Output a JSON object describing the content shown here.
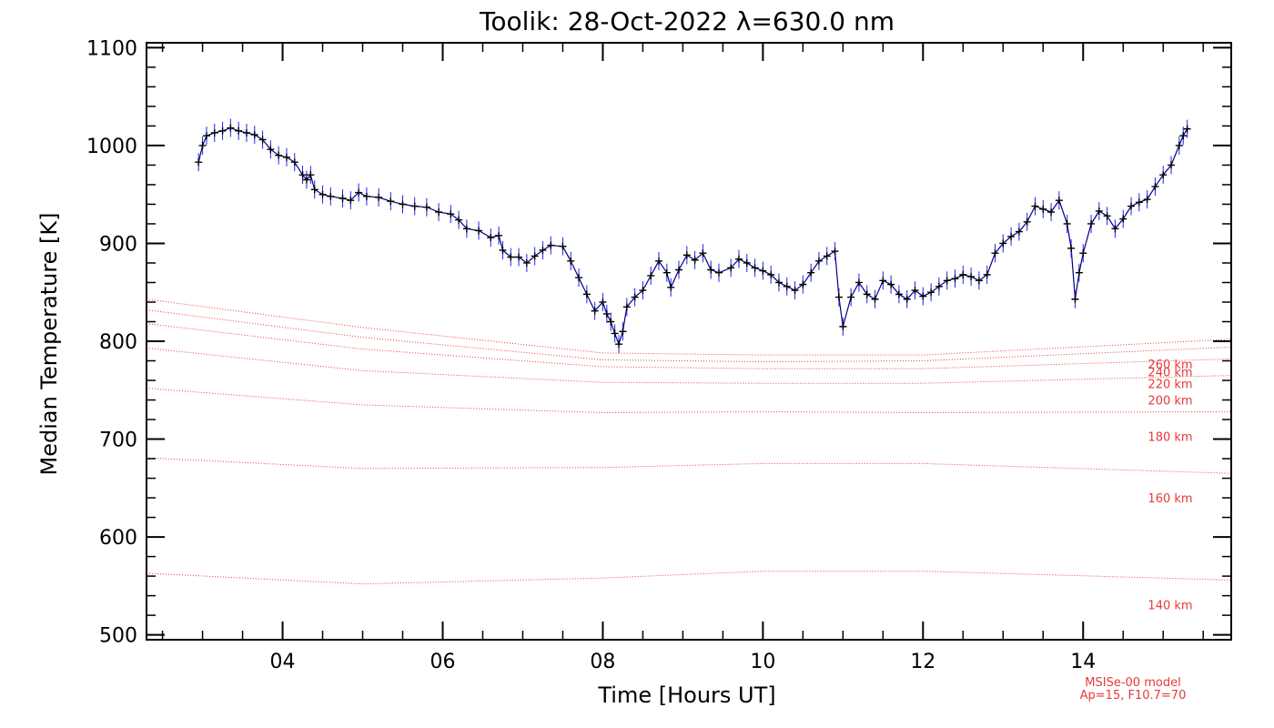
{
  "chart_data": {
    "type": "line",
    "title": "Toolik: 28-Oct-2022 λ=630.0 nm",
    "xlabel": "Time [Hours UT]",
    "ylabel": "Median Temperature [K]",
    "xlim": [
      2.3,
      15.85
    ],
    "ylim": [
      495,
      1105
    ],
    "x_ticks": [
      4,
      6,
      8,
      10,
      12,
      14
    ],
    "x_tick_labels": [
      "04",
      "06",
      "08",
      "10",
      "12",
      "14"
    ],
    "y_ticks": [
      500,
      600,
      700,
      800,
      900,
      1000,
      1100
    ],
    "y_tick_labels": [
      "500",
      "600",
      "700",
      "800",
      "900",
      "1000",
      "1100"
    ],
    "series": [
      {
        "color": "#000080",
        "marker": "plus",
        "error_bar_color": "#2020ff",
        "points": [
          [
            2.95,
            983
          ],
          [
            3.0,
            1000
          ],
          [
            3.05,
            1010
          ],
          [
            3.15,
            1013
          ],
          [
            3.25,
            1015
          ],
          [
            3.35,
            1018
          ],
          [
            3.45,
            1015
          ],
          [
            3.55,
            1013
          ],
          [
            3.65,
            1011
          ],
          [
            3.75,
            1006
          ],
          [
            3.85,
            996
          ],
          [
            3.95,
            990
          ],
          [
            4.05,
            988
          ],
          [
            4.15,
            983
          ],
          [
            4.25,
            970
          ],
          [
            4.3,
            965
          ],
          [
            4.35,
            970
          ],
          [
            4.4,
            955
          ],
          [
            4.5,
            950
          ],
          [
            4.6,
            948
          ],
          [
            4.75,
            946
          ],
          [
            4.85,
            944
          ],
          [
            4.95,
            952
          ],
          [
            5.05,
            948
          ],
          [
            5.2,
            947
          ],
          [
            5.35,
            943
          ],
          [
            5.5,
            940
          ],
          [
            5.65,
            938
          ],
          [
            5.8,
            937
          ],
          [
            5.95,
            932
          ],
          [
            6.1,
            930
          ],
          [
            6.2,
            924
          ],
          [
            6.3,
            915
          ],
          [
            6.45,
            913
          ],
          [
            6.6,
            906
          ],
          [
            6.7,
            908
          ],
          [
            6.75,
            893
          ],
          [
            6.85,
            886
          ],
          [
            6.95,
            886
          ],
          [
            7.05,
            880
          ],
          [
            7.15,
            887
          ],
          [
            7.25,
            893
          ],
          [
            7.35,
            898
          ],
          [
            7.5,
            897
          ],
          [
            7.6,
            882
          ],
          [
            7.7,
            865
          ],
          [
            7.8,
            848
          ],
          [
            7.9,
            831
          ],
          [
            8.0,
            840
          ],
          [
            8.05,
            828
          ],
          [
            8.1,
            820
          ],
          [
            8.15,
            808
          ],
          [
            8.2,
            797
          ],
          [
            8.25,
            810
          ],
          [
            8.3,
            835
          ],
          [
            8.4,
            845
          ],
          [
            8.5,
            852
          ],
          [
            8.6,
            867
          ],
          [
            8.7,
            882
          ],
          [
            8.8,
            870
          ],
          [
            8.85,
            855
          ],
          [
            8.95,
            873
          ],
          [
            9.05,
            888
          ],
          [
            9.15,
            883
          ],
          [
            9.25,
            890
          ],
          [
            9.35,
            873
          ],
          [
            9.45,
            870
          ],
          [
            9.6,
            875
          ],
          [
            9.7,
            884
          ],
          [
            9.8,
            880
          ],
          [
            9.9,
            875
          ],
          [
            10.0,
            872
          ],
          [
            10.1,
            868
          ],
          [
            10.2,
            860
          ],
          [
            10.3,
            856
          ],
          [
            10.4,
            852
          ],
          [
            10.5,
            858
          ],
          [
            10.6,
            870
          ],
          [
            10.7,
            882
          ],
          [
            10.8,
            887
          ],
          [
            10.9,
            892
          ],
          [
            10.95,
            845
          ],
          [
            11.0,
            815
          ],
          [
            11.1,
            845
          ],
          [
            11.2,
            860
          ],
          [
            11.3,
            848
          ],
          [
            11.4,
            843
          ],
          [
            11.5,
            862
          ],
          [
            11.6,
            858
          ],
          [
            11.7,
            848
          ],
          [
            11.8,
            843
          ],
          [
            11.9,
            852
          ],
          [
            12.0,
            846
          ],
          [
            12.1,
            850
          ],
          [
            12.2,
            856
          ],
          [
            12.3,
            862
          ],
          [
            12.4,
            864
          ],
          [
            12.5,
            868
          ],
          [
            12.6,
            866
          ],
          [
            12.7,
            862
          ],
          [
            12.8,
            868
          ],
          [
            12.9,
            890
          ],
          [
            13.0,
            900
          ],
          [
            13.1,
            907
          ],
          [
            13.2,
            912
          ],
          [
            13.3,
            922
          ],
          [
            13.4,
            938
          ],
          [
            13.5,
            935
          ],
          [
            13.6,
            932
          ],
          [
            13.7,
            944
          ],
          [
            13.8,
            920
          ],
          [
            13.85,
            895
          ],
          [
            13.9,
            843
          ],
          [
            13.95,
            870
          ],
          [
            14.0,
            890
          ],
          [
            14.1,
            920
          ],
          [
            14.2,
            933
          ],
          [
            14.3,
            928
          ],
          [
            14.4,
            915
          ],
          [
            14.5,
            925
          ],
          [
            14.6,
            938
          ],
          [
            14.7,
            942
          ],
          [
            14.8,
            945
          ],
          [
            14.9,
            958
          ],
          [
            15.0,
            970
          ],
          [
            15.1,
            980
          ],
          [
            15.2,
            1000
          ],
          [
            15.25,
            1010
          ],
          [
            15.3,
            1017
          ]
        ]
      }
    ],
    "model_curves": [
      {
        "label": "140 km",
        "x": [
          2.3,
          5.0,
          8.0,
          10.0,
          12.0,
          15.85
        ],
        "y": [
          563,
          552,
          558,
          565,
          565,
          556
        ]
      },
      {
        "label": "160 km",
        "x": [
          2.3,
          5.0,
          8.0,
          10.0,
          12.0,
          15.85
        ],
        "y": [
          681,
          670,
          671,
          675,
          675,
          665
        ]
      },
      {
        "label": "180 km",
        "x": [
          2.3,
          5.0,
          8.0,
          10.0,
          12.0,
          15.85
        ],
        "y": [
          752,
          735,
          727,
          728,
          727,
          728
        ]
      },
      {
        "label": "200 km",
        "x": [
          2.3,
          5.0,
          8.0,
          10.0,
          12.0,
          15.85
        ],
        "y": [
          793,
          770,
          758,
          757,
          757,
          765
        ]
      },
      {
        "label": "220 km",
        "x": [
          2.3,
          5.0,
          8.0,
          10.0,
          12.0,
          15.85
        ],
        "y": [
          818,
          792,
          774,
          772,
          772,
          782
        ]
      },
      {
        "label": "240 km",
        "x": [
          2.3,
          5.0,
          8.0,
          10.0,
          12.0,
          15.85
        ],
        "y": [
          832,
          804,
          781,
          779,
          780,
          794
        ]
      },
      {
        "label": "260 km",
        "x": [
          2.3,
          5.0,
          8.0,
          10.0,
          12.0,
          15.85
        ],
        "y": [
          843,
          814,
          788,
          786,
          786,
          802
        ]
      }
    ],
    "model_note": [
      "MSISe-00 model",
      "Ap=15, F10.7=70"
    ]
  },
  "colors": {
    "model": "#e8383a",
    "data_line": "#000080",
    "error_bars": "#2020ff",
    "axes": "#000000"
  }
}
